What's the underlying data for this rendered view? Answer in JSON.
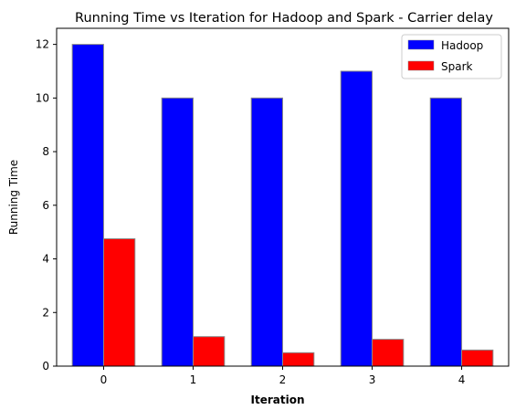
{
  "chart_data": {
    "type": "bar",
    "title": "Running Time vs Iteration for Hadoop and Spark - Carrier delay",
    "xlabel": "Iteration",
    "ylabel": "Running Time",
    "categories": [
      "0",
      "1",
      "2",
      "3",
      "4"
    ],
    "series": [
      {
        "name": "Hadoop",
        "color": "#0000ff",
        "values": [
          12,
          10,
          10,
          11,
          10
        ]
      },
      {
        "name": "Spark",
        "color": "#ff0000",
        "values": [
          4.75,
          1.1,
          0.5,
          1.0,
          0.6
        ]
      }
    ],
    "ylim": [
      0,
      12.6
    ],
    "yticks": [
      "0",
      "2",
      "4",
      "6",
      "8",
      "10",
      "12"
    ],
    "grid": false,
    "legend_position": "top-right"
  }
}
